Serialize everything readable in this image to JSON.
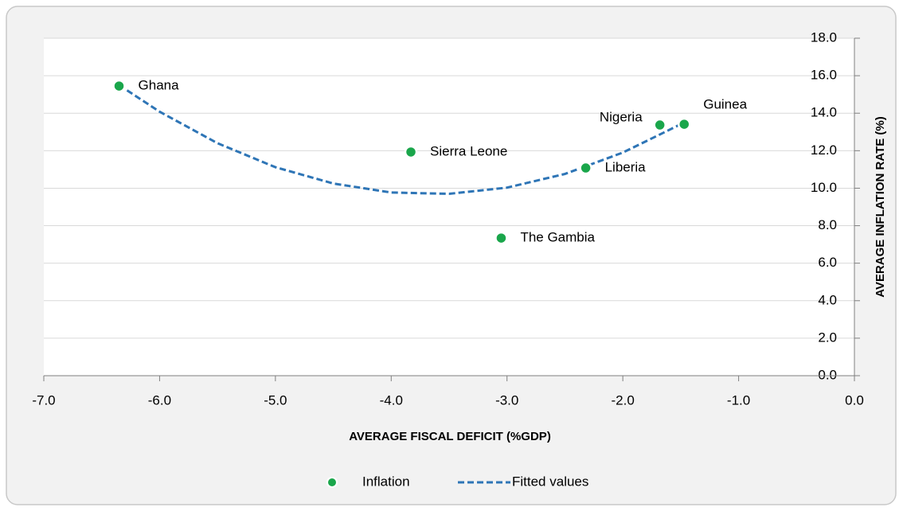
{
  "chart_data": {
    "type": "scatter",
    "xlabel": "AVERAGE FISCAL DEFICIT (%GDP)",
    "ylabel": "AVERAGE INFLATION RATE (%)",
    "xlim": [
      -7,
      0
    ],
    "xticks": [
      {
        "value": -7,
        "label": "-7.0"
      },
      {
        "value": -6,
        "label": "-6.0"
      },
      {
        "value": -5,
        "label": "-5.0"
      },
      {
        "value": -4,
        "label": "-4.0"
      },
      {
        "value": -3,
        "label": "-3.0"
      },
      {
        "value": -2,
        "label": "-2.0"
      },
      {
        "value": -1,
        "label": "-1.0"
      },
      {
        "value": 0,
        "label": "0.0"
      }
    ],
    "ylim": [
      0,
      18
    ],
    "yticks": [
      {
        "value": 0,
        "label": "0.0"
      },
      {
        "value": 2,
        "label": "2.0"
      },
      {
        "value": 4,
        "label": "4.0"
      },
      {
        "value": 6,
        "label": "6.0"
      },
      {
        "value": 8,
        "label": "8.0"
      },
      {
        "value": 10,
        "label": "10.0"
      },
      {
        "value": 12,
        "label": "12.0"
      },
      {
        "value": 14,
        "label": "14.0"
      },
      {
        "value": 16,
        "label": "16.0"
      },
      {
        "value": 18,
        "label": "18.0"
      }
    ],
    "y_axis_side": "right",
    "grid": true,
    "legend": "bottom",
    "series": [
      {
        "name": "Inflation",
        "color": "#1aa64b",
        "mode": "markers",
        "x": [
          -6.35,
          -3.83,
          -3.05,
          -2.32,
          -1.68,
          -1.47
        ],
        "values": [
          15.45,
          11.93,
          7.34,
          11.08,
          13.37,
          13.41
        ],
        "labels": [
          "Ghana",
          "Sierra Leone",
          "The Gambia",
          "Liberia",
          "Nigeria",
          "Guinea"
        ]
      },
      {
        "name": "Fitted values",
        "color": "#2e75b6",
        "mode": "dashed-line",
        "x": [
          -6.35,
          -6,
          -5.5,
          -5,
          -4.5,
          -4,
          -3.5,
          -3,
          -2.5,
          -2,
          -1.47
        ],
        "values": [
          15.5,
          14.08,
          12.4,
          11.12,
          10.25,
          9.77,
          9.7,
          10.03,
          10.76,
          11.9,
          13.5
        ]
      }
    ]
  }
}
